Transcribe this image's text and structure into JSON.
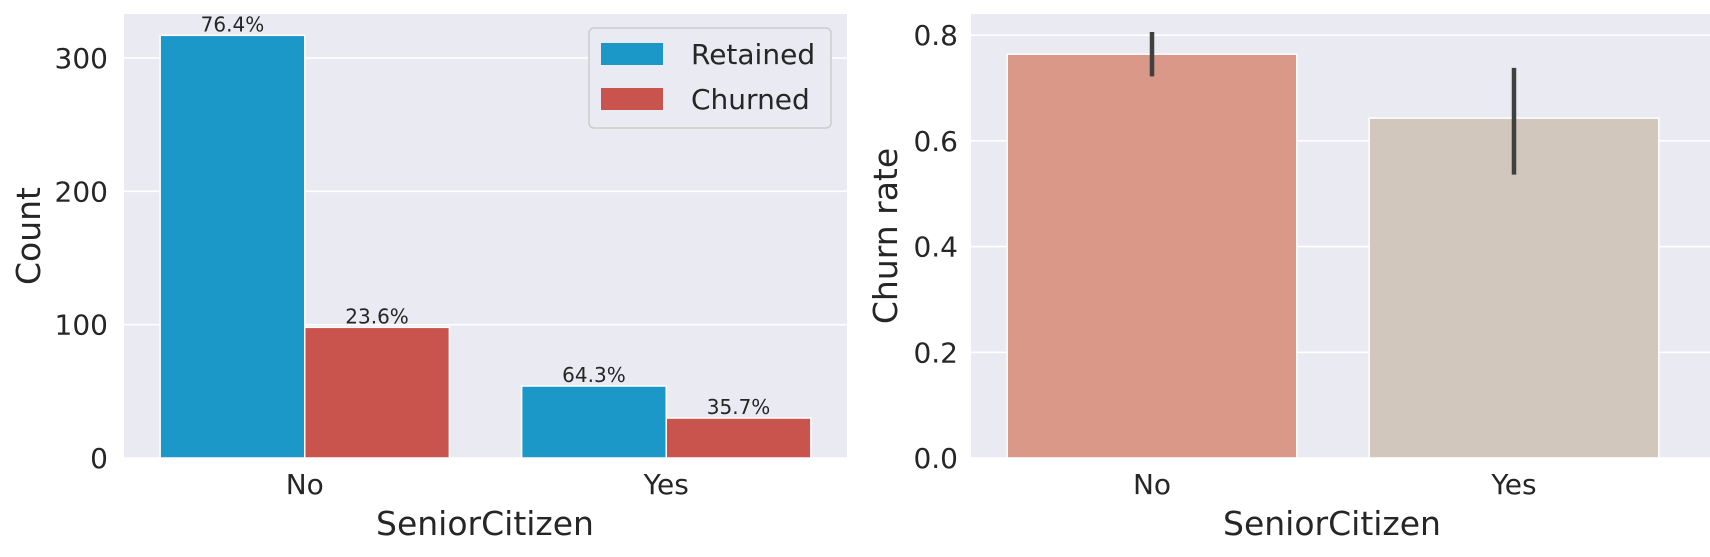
{
  "chart_data": [
    {
      "type": "bar",
      "xlabel": "SeniorCitizen",
      "ylabel": "Count",
      "categories": [
        "No",
        "Yes"
      ],
      "series": [
        {
          "name": "Retained",
          "values": [
            317,
            54
          ],
          "color": "#1b98c7",
          "pct_labels": [
            "76.4%",
            "64.3%"
          ]
        },
        {
          "name": "Churned",
          "values": [
            98,
            30
          ],
          "color": "#c9534d",
          "pct_labels": [
            "23.6%",
            "35.7%"
          ]
        }
      ],
      "ylim": [
        0,
        333
      ],
      "yticks": [
        0,
        100,
        200,
        300
      ],
      "ytick_labels": [
        "0",
        "100",
        "200",
        "300"
      ],
      "grid": true,
      "legend_placement": "upper-right"
    },
    {
      "type": "bar",
      "xlabel": "SeniorCitizen",
      "ylabel": "Churn rate",
      "categories": [
        "No",
        "Yes"
      ],
      "values": [
        0.764,
        0.643
      ],
      "error_bars": [
        [
          0.722,
          0.806
        ],
        [
          0.536,
          0.738
        ]
      ],
      "colors": [
        "#da9888",
        "#d1c7bd"
      ],
      "error_color": "#404040",
      "ylim": [
        0,
        0.84
      ],
      "yticks": [
        0.0,
        0.2,
        0.4,
        0.6,
        0.8
      ],
      "ytick_labels": [
        "0.0",
        "0.2",
        "0.4",
        "0.6",
        "0.8"
      ],
      "grid": true
    }
  ]
}
